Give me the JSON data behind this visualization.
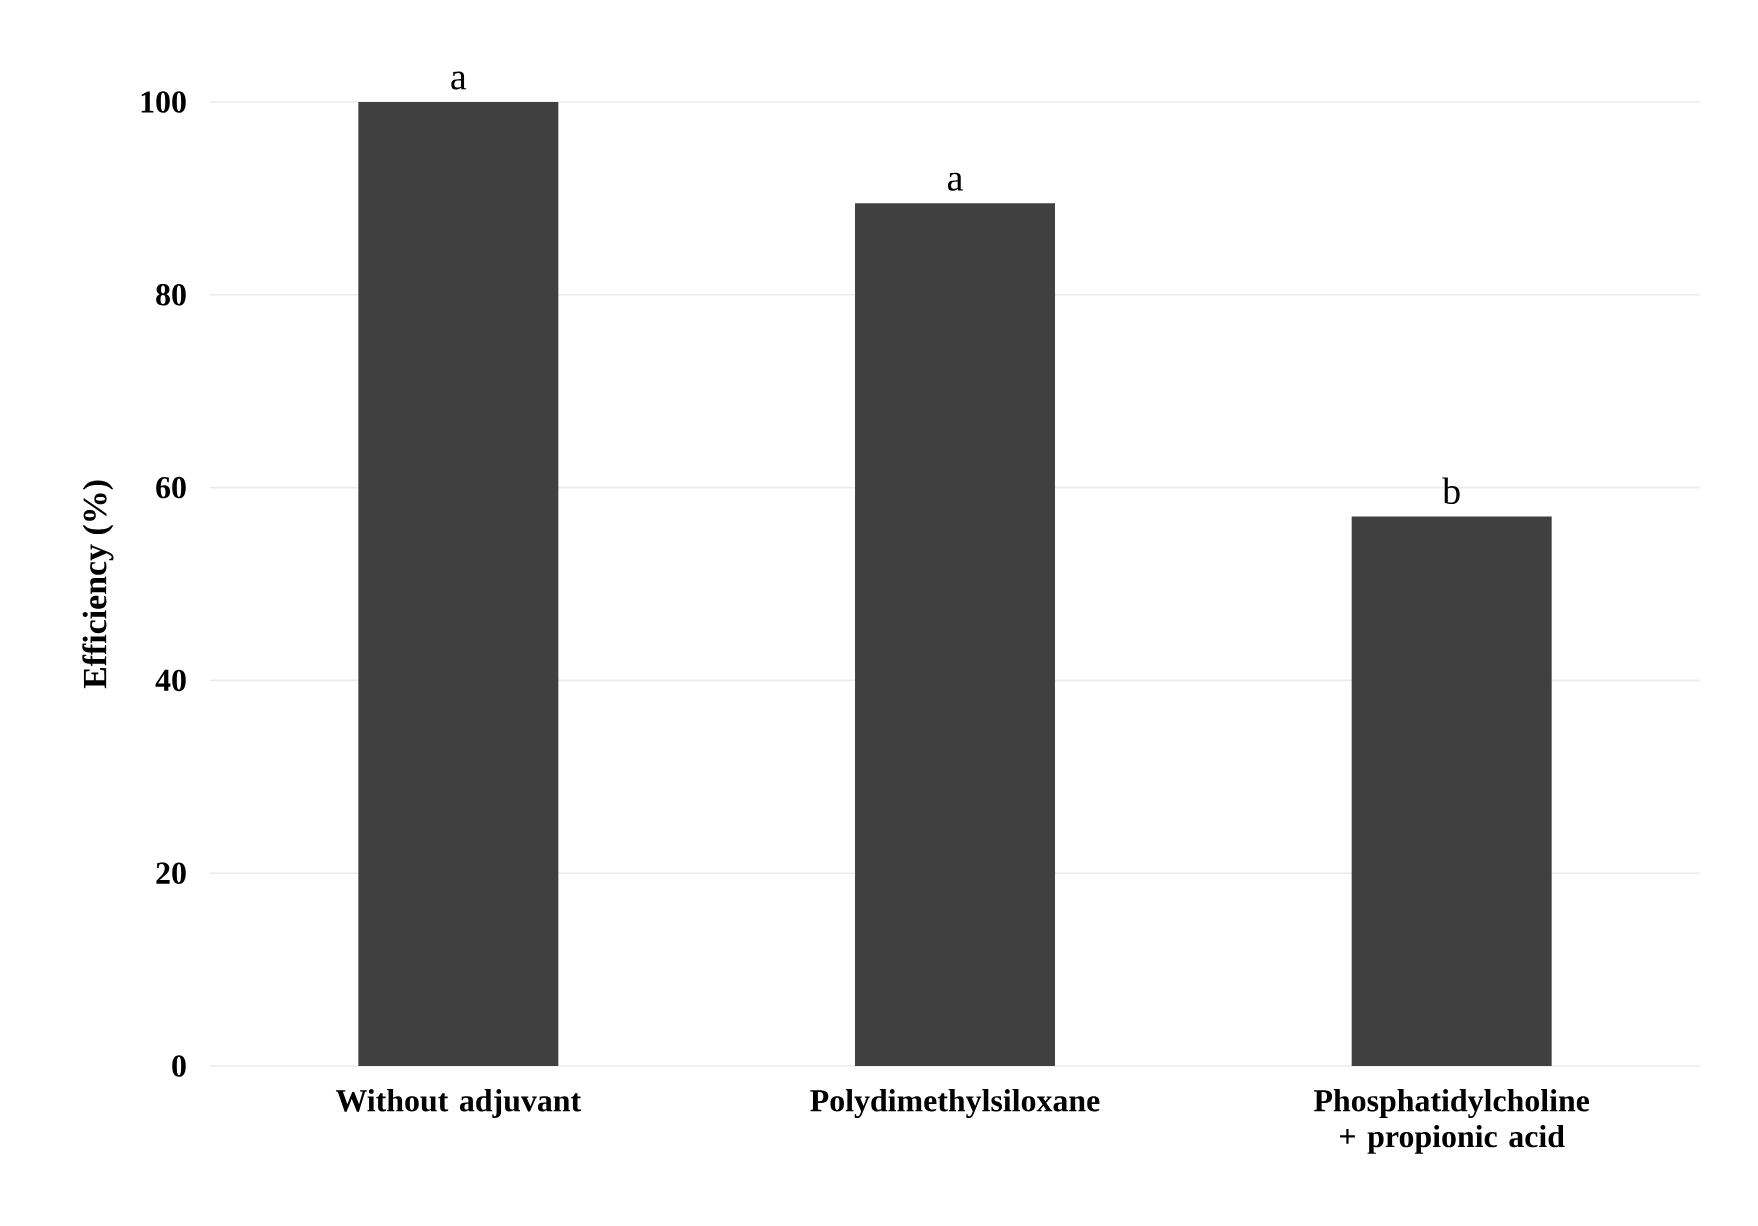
{
  "chart_data": {
    "type": "bar",
    "ylabel": "Efficiency (%)",
    "categories": [
      "Without adjuvant",
      "Polydimethylsiloxane",
      "Phosphatidylcholine + propionic acid"
    ],
    "values": [
      100,
      89.5,
      57
    ],
    "color": "#404040",
    "ylim": [
      0,
      100
    ],
    "yticks": [
      0,
      20,
      40,
      60,
      80,
      100
    ],
    "grid": "y",
    "annotations": [
      {
        "text": "a",
        "x": "Without adjuvant",
        "y": 100
      },
      {
        "text": "a",
        "x": "Polydimethylsiloxane",
        "y": 89.5
      },
      {
        "text": "b",
        "x": "Phosphatidylcholine + propionic acid",
        "y": 57
      }
    ]
  }
}
